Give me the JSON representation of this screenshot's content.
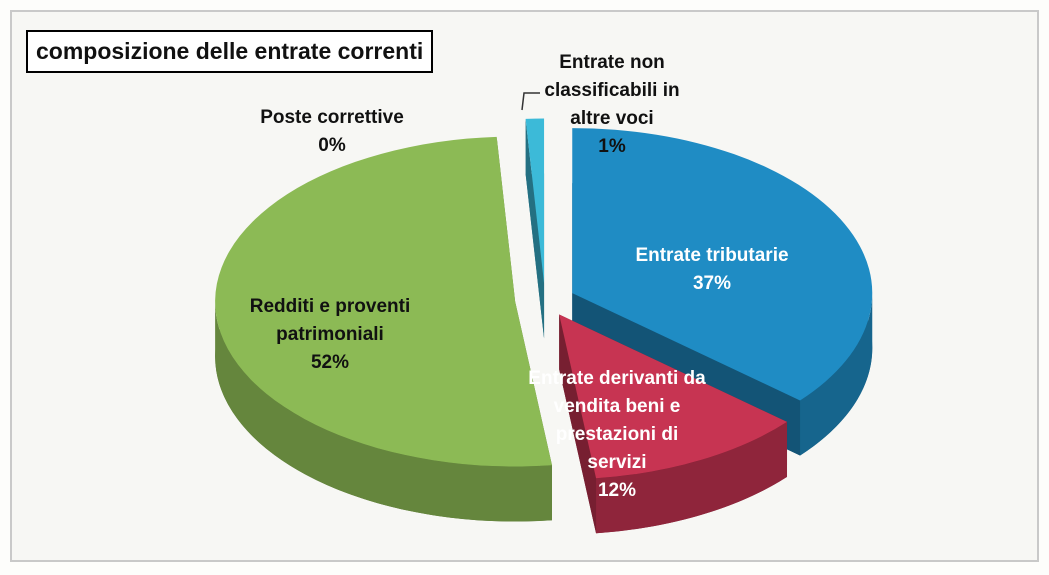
{
  "chart_data": {
    "type": "pie3d",
    "title": "composizione delle entrate correnti",
    "categories": [
      "Entrate tributarie",
      "Entrate derivanti da vendita beni e prestazioni di servizi",
      "Redditi e proventi patrimoniali",
      "Poste correttive",
      "Entrate non classificabili in altre voci"
    ],
    "values": [
      37,
      12,
      52,
      0,
      1
    ],
    "value_labels": [
      "37%",
      "12%",
      "52%",
      "0%",
      "1%"
    ],
    "colors": [
      "#1f8cc4",
      "#c73452",
      "#8cba55",
      "#e38a2e",
      "#3cbad8"
    ]
  }
}
